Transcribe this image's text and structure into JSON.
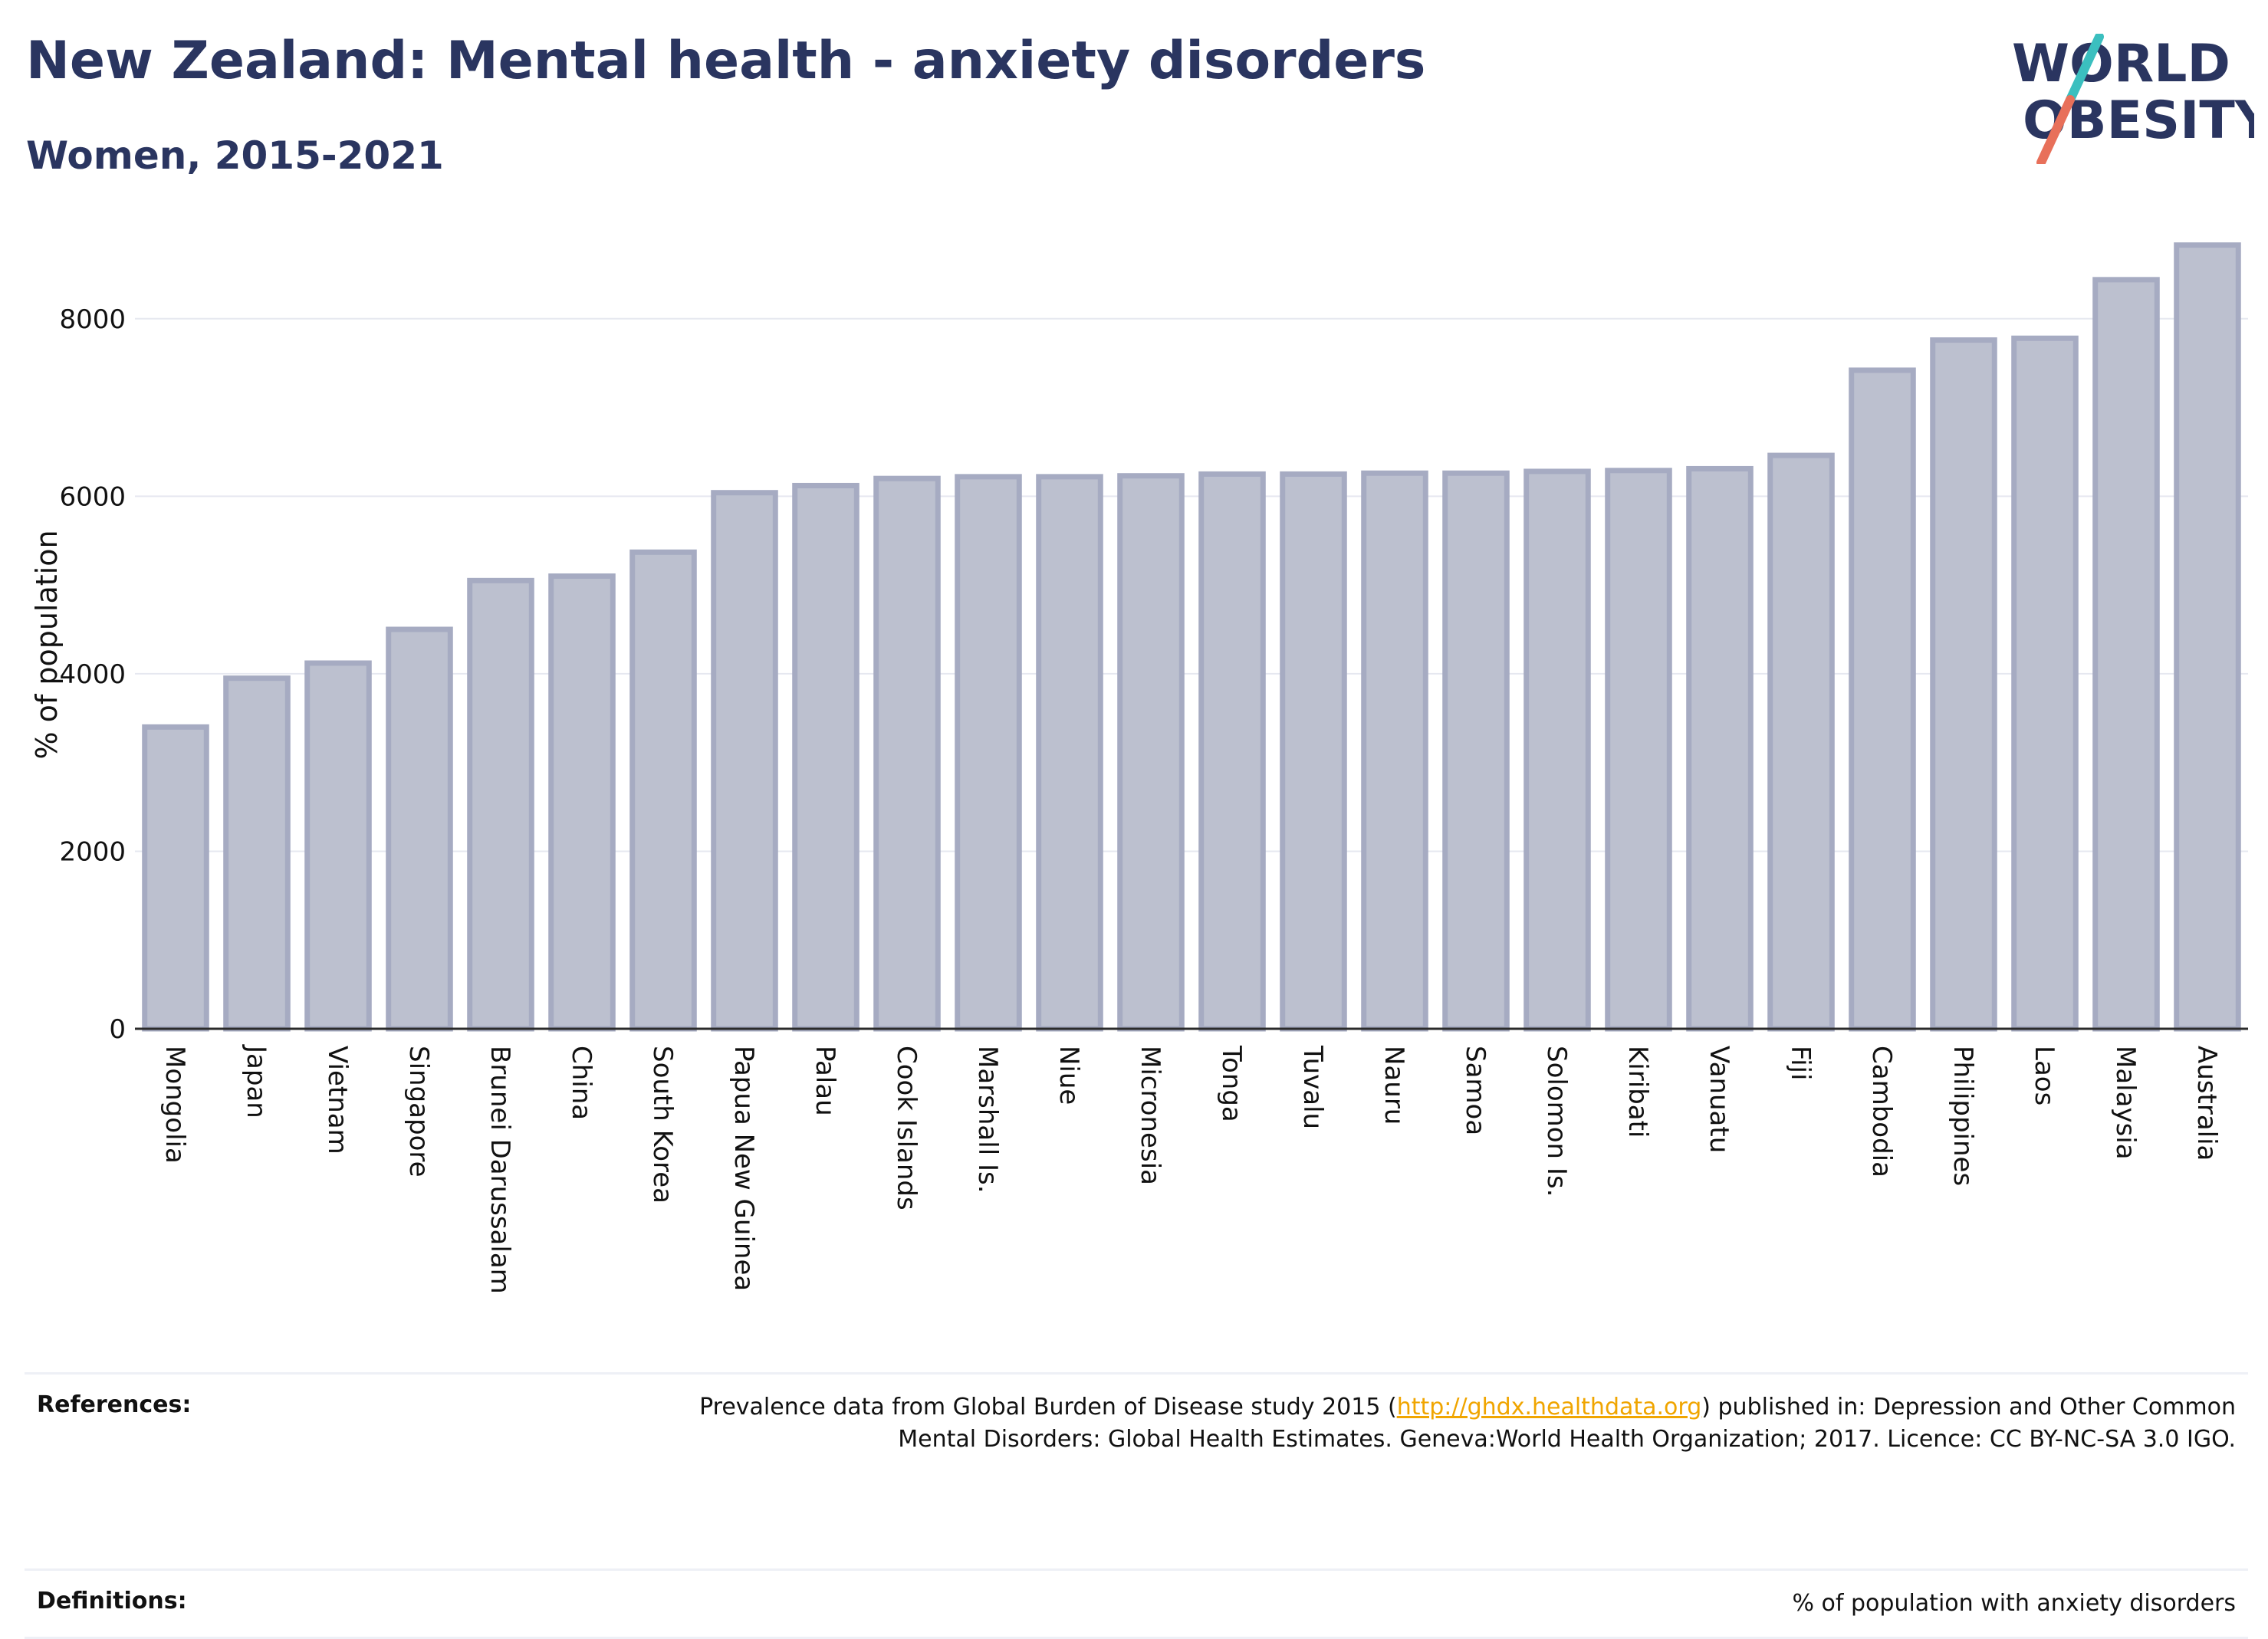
{
  "header": {
    "title": "New Zealand: Mental health - anxiety disorders",
    "subtitle": "Women, 2015-2021"
  },
  "logo": {
    "line1": "WORLD",
    "line2": "OBESITY",
    "colors": {
      "text": "#2a3560",
      "slash_top": "#3bbfbf",
      "slash_bottom": "#e8705a"
    }
  },
  "chart_data": {
    "type": "bar",
    "ylabel": "% of population",
    "xlabel": "",
    "ylim": [
      0,
      9000
    ],
    "yticks": [
      0,
      2000,
      4000,
      6000,
      8000
    ],
    "grid": true,
    "bar_color": "#bcc0cf",
    "bar_edge": "#a6abc2",
    "categories": [
      "Mongolia",
      "Japan",
      "Vietnam",
      "Singapore",
      "Brunei Darussalam",
      "China",
      "South Korea",
      "Papua New Guinea",
      "Palau",
      "Cook Islands",
      "Marshall Is.",
      "Niue",
      "Micronesia",
      "Tonga",
      "Tuvalu",
      "Nauru",
      "Samoa",
      "Solomon Is.",
      "Kiribati",
      "Vanuatu",
      "Fiji",
      "Cambodia",
      "Philippines",
      "Laos",
      "Malaysia",
      "Australia"
    ],
    "values": [
      3400,
      3950,
      4120,
      4500,
      5050,
      5100,
      5370,
      6040,
      6120,
      6200,
      6220,
      6220,
      6230,
      6250,
      6250,
      6260,
      6260,
      6280,
      6290,
      6310,
      6460,
      7420,
      7760,
      7780,
      8440,
      8830
    ]
  },
  "footer": {
    "references_label": "References:",
    "references_text_before": "Prevalence data from Global Burden of Disease study 2015 (",
    "references_link": "http://ghdx.healthdata.org",
    "references_text_after": ") published in: Depression and Other Common",
    "references_line2": "Mental Disorders: Global Health Estimates. Geneva:World Health Organization; 2017. Licence: CC BY-NC-SA 3.0 IGO.",
    "definitions_label": "Definitions:",
    "definitions_text": "% of population with anxiety disorders"
  }
}
